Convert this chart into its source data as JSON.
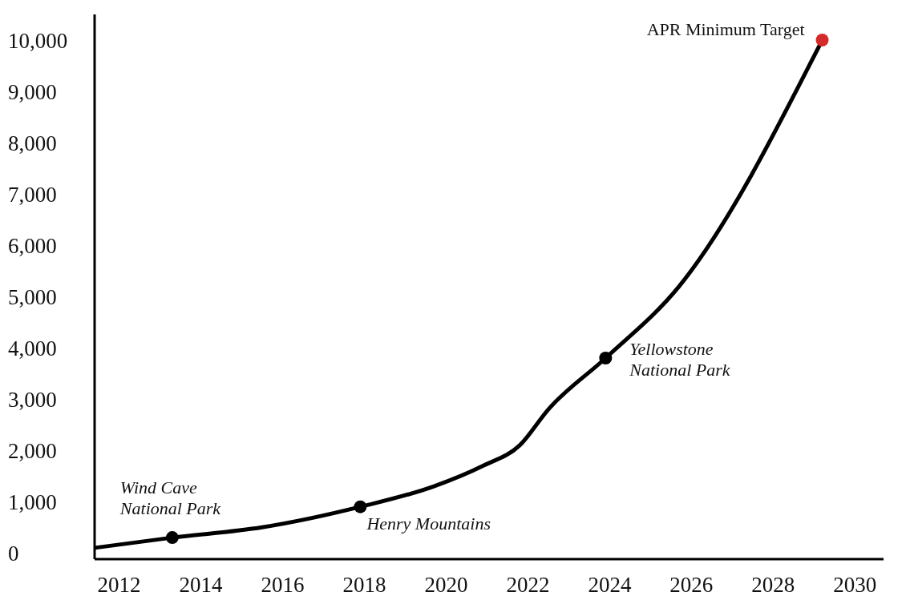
{
  "chart_data": {
    "type": "line",
    "xlim": [
      2011.4,
      2030.7
    ],
    "xticks": [
      2012,
      2014,
      2016,
      2018,
      2020,
      2022,
      2024,
      2026,
      2028,
      2030
    ],
    "ylim": [
      -120,
      10500
    ],
    "yticks": [
      0,
      {
        "value": 1000,
        "label": "1,000"
      },
      {
        "value": 2000,
        "label": "2,000"
      },
      {
        "value": 3000,
        "label": "3,000"
      },
      {
        "value": 4000,
        "label": "4,000"
      },
      {
        "value": 5000,
        "label": "5,000"
      },
      {
        "value": 6000,
        "label": "6,000"
      },
      {
        "value": 7000,
        "label": "7,000"
      },
      {
        "value": 8000,
        "label": "8,000"
      },
      {
        "value": 9000,
        "label": "9,000"
      },
      {
        "value": 10000,
        "label": "10,000"
      }
    ],
    "grid": false,
    "marker": "none",
    "line_style": "solid",
    "series": [
      {
        "color": "#000000",
        "x": [
          2011.4,
          2013.3,
          2015.5,
          2017.9,
          2019.7,
          2020.9,
          2021.8,
          2022.5,
          2023.9,
          2025.7,
          2029.2
        ],
        "values": [
          100,
          300,
          500,
          900,
          1300,
          1700,
          2100,
          2800,
          3800,
          5200,
          10000
        ]
      },
      {
        "type": "scatter",
        "marker": "circle",
        "x": [
          2013.3,
          2017.9,
          2023.9,
          2029.2
        ],
        "values": [
          300,
          900,
          3800,
          10000
        ],
        "colors": [
          "#000000",
          "#000000",
          "#000000",
          "#d42a2a"
        ]
      }
    ],
    "annotations": [
      {
        "text": "Wind Cave\nNational Park",
        "x": 2013.3,
        "y": 300
      },
      {
        "text": "Henry Mountains",
        "x": 2017.9,
        "y": 900
      },
      {
        "text": "Yellowstone\nNational Park",
        "x": 2023.9,
        "y": 3800
      },
      {
        "text": "APR Minimum Target",
        "x": 2029.2,
        "y": 10000
      }
    ]
  }
}
